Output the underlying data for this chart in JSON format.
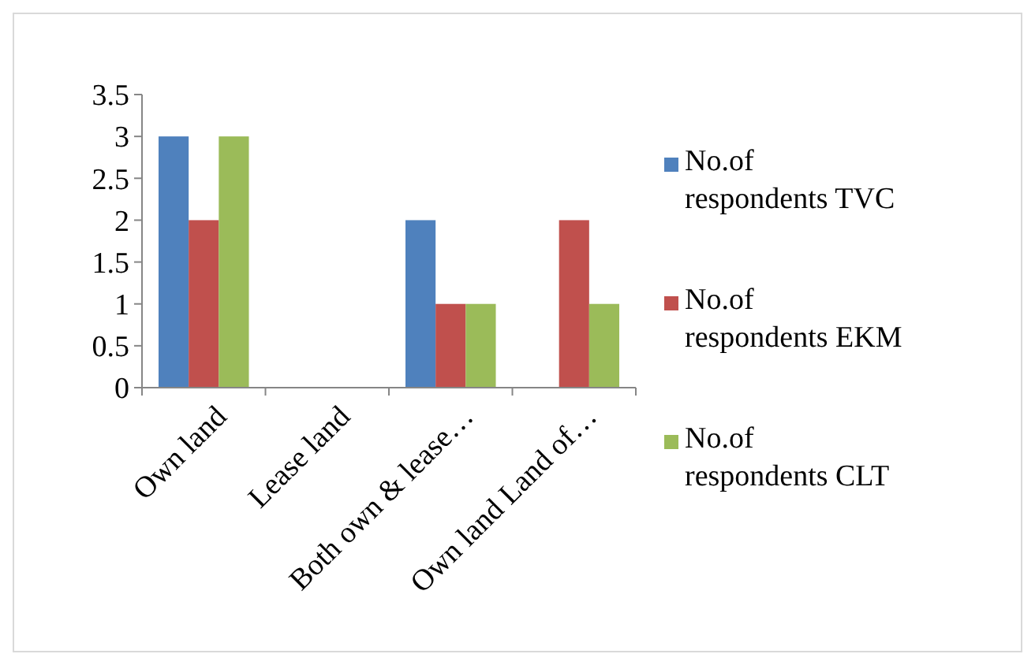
{
  "chart_data": {
    "type": "bar",
    "categories": [
      "Own land",
      "Lease land",
      "Both own & lease…",
      "Own land Land of…"
    ],
    "series": [
      {
        "name": "No.of respondents TVC",
        "color": "#4f81bd",
        "values": [
          3,
          0,
          2,
          0
        ]
      },
      {
        "name": "No.of respondents EKM",
        "color": "#c0504d",
        "values": [
          2,
          0,
          1,
          2
        ]
      },
      {
        "name": "No.of respondents CLT",
        "color": "#9bbb59",
        "values": [
          3,
          0,
          1,
          1
        ]
      }
    ],
    "ylim": [
      0,
      3.5
    ],
    "yticks": [
      0,
      0.5,
      1,
      1.5,
      2,
      2.5,
      3,
      3.5
    ],
    "grid": false,
    "legend": "right"
  }
}
